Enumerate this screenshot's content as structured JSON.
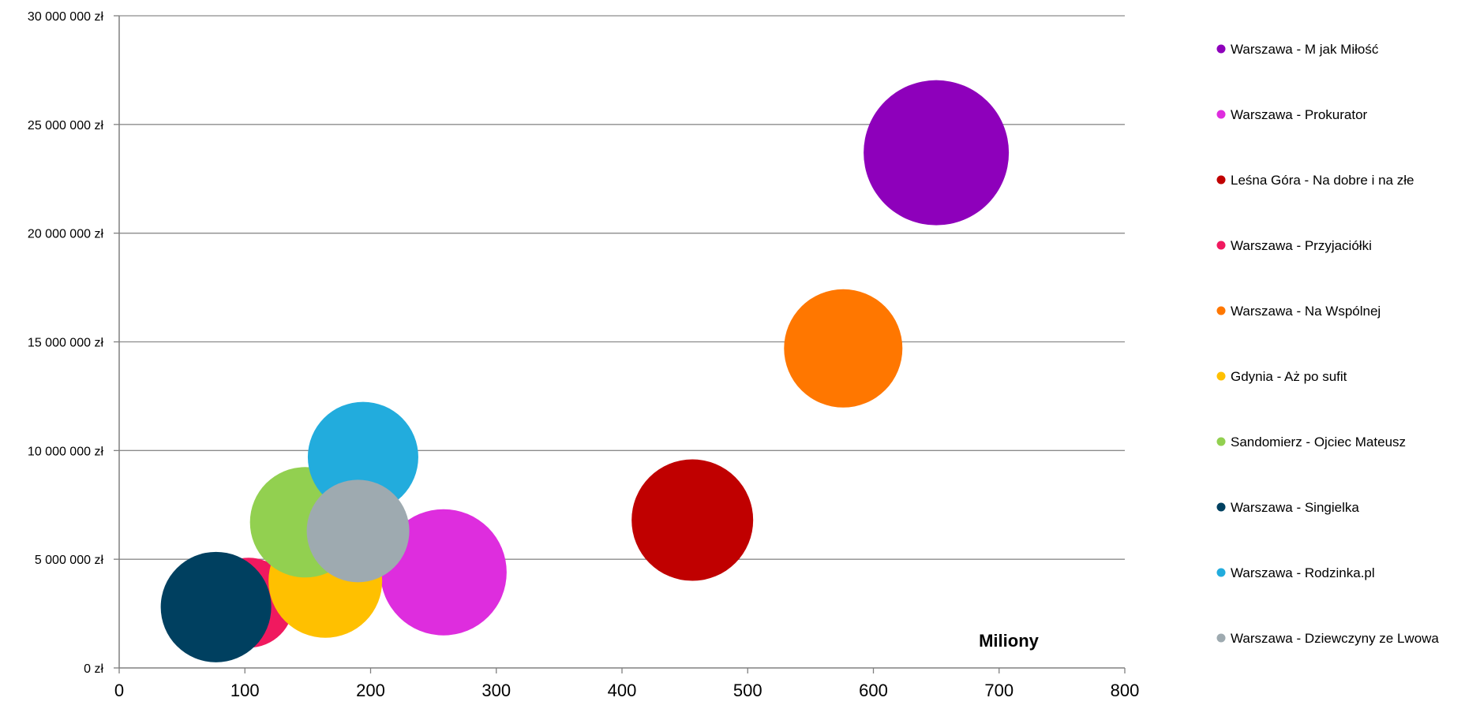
{
  "chart_data": {
    "type": "bubble",
    "x_unit_label": "Miliony",
    "xlim": [
      0,
      800
    ],
    "ylim": [
      0,
      30000000
    ],
    "x_ticks": [
      "0",
      "100",
      "200",
      "300",
      "400",
      "500",
      "600",
      "700",
      "800"
    ],
    "y_ticks": [
      "0 zł",
      "5 000 000 zł",
      "10 000 000 zł",
      "15 000 000 zł",
      "20 000 000 zł",
      "25 000 000 zł",
      "30 000 000 zł"
    ],
    "grid": "horizontal",
    "legend_position": "right",
    "series": [
      {
        "name": "Warszawa - M jak Miłość",
        "color": "#8E00BB",
        "x": 650,
        "y": 23700000,
        "size": 92
      },
      {
        "name": "Warszawa - Prokurator",
        "color": "#DE2DDE",
        "x": 258,
        "y": 4400000,
        "size": 80
      },
      {
        "name": "Leśna Góra - Na dobre i na złe",
        "color": "#C00000",
        "x": 456,
        "y": 6800000,
        "size": 77
      },
      {
        "name": "Warszawa - Przyjaciółki",
        "color": "#F0195F",
        "x": 103,
        "y": 3000000,
        "size": 57
      },
      {
        "name": "Warszawa - Na Wspólnej",
        "color": "#FF7700",
        "x": 576,
        "y": 14700000,
        "size": 75
      },
      {
        "name": "Gdynia - Aż po sufit",
        "color": "#FFC000",
        "x": 164,
        "y": 4000000,
        "size": 72
      },
      {
        "name": "Sandomierz - Ojciec Mateusz",
        "color": "#92D050",
        "x": 148,
        "y": 6700000,
        "size": 70
      },
      {
        "name": "Warszawa - Singielka",
        "color": "#004060",
        "x": 77,
        "y": 2800000,
        "size": 70
      },
      {
        "name": "Warszawa - Rodzinka.pl",
        "color": "#22ACDD",
        "x": 194,
        "y": 9700000,
        "size": 70
      },
      {
        "name": "Warszawa - Dziewczyny ze Lwowa",
        "color": "#9EAAB0",
        "x": 190,
        "y": 6300000,
        "size": 65
      }
    ]
  }
}
